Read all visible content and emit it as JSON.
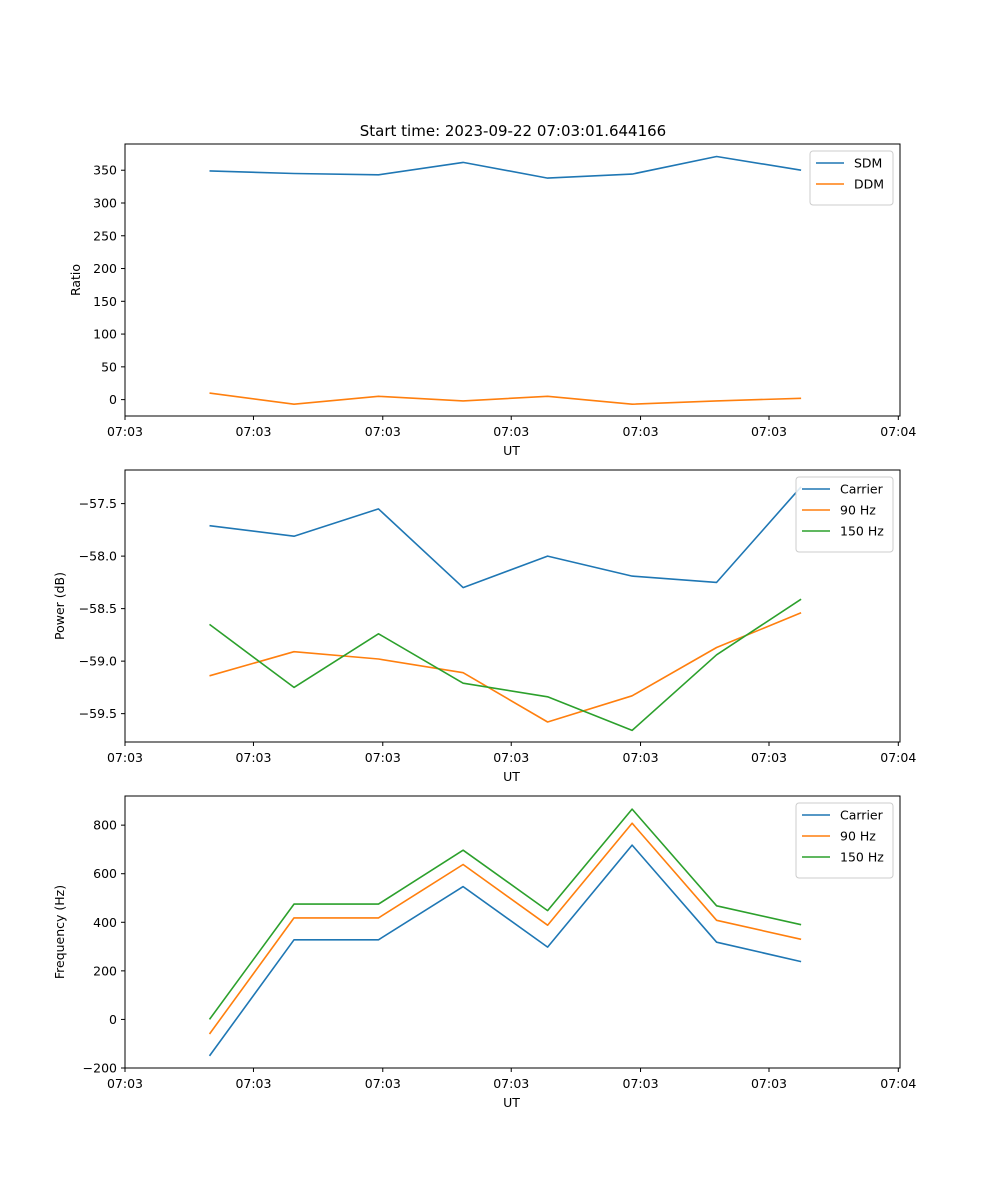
{
  "figure_title": "Start time: 2023-09-22 07:03:01.644166",
  "chart_data": [
    {
      "type": "line",
      "xlabel": "UT",
      "ylabel": "Ratio",
      "ylim": [
        -25,
        390
      ],
      "yticks": [
        0,
        50,
        100,
        150,
        200,
        250,
        300,
        350
      ],
      "ytick_labels": [
        "0",
        "50",
        "100",
        "150",
        "200",
        "250",
        "300",
        "350"
      ],
      "x": [
        1,
        2,
        3,
        4,
        5,
        6,
        7,
        8
      ],
      "xlim": [
        0,
        9.17
      ],
      "xticks": [
        0,
        1.52,
        3.05,
        4.57,
        6.1,
        7.62,
        9.15
      ],
      "xtick_labels": [
        "07:03",
        "07:03",
        "07:03",
        "07:03",
        "07:03",
        "07:03",
        "07:04"
      ],
      "legend_position": "top-right",
      "series": [
        {
          "name": "SDM",
          "color": "#1f77b4",
          "values": [
            349,
            345,
            343,
            362,
            338,
            344,
            371,
            350
          ]
        },
        {
          "name": "DDM",
          "color": "#ff7f0e",
          "values": [
            10,
            -7,
            5,
            -2,
            5,
            -7,
            -2,
            2
          ]
        }
      ]
    },
    {
      "type": "line",
      "xlabel": "UT",
      "ylabel": "Power (dB)",
      "ylim": [
        -59.77,
        -57.18
      ],
      "yticks": [
        -59.5,
        -59.0,
        -58.5,
        -58.0,
        -57.5
      ],
      "ytick_labels": [
        "−59.5",
        "−59.0",
        "−58.5",
        "−58.0",
        "−57.5"
      ],
      "x": [
        1,
        2,
        3,
        4,
        5,
        6,
        7,
        8
      ],
      "xlim": [
        0,
        9.17
      ],
      "xticks": [
        0,
        1.52,
        3.05,
        4.57,
        6.1,
        7.62,
        9.15
      ],
      "xtick_labels": [
        "07:03",
        "07:03",
        "07:03",
        "07:03",
        "07:03",
        "07:03",
        "07:04"
      ],
      "legend_position": "top-right",
      "series": [
        {
          "name": "Carrier",
          "color": "#1f77b4",
          "values": [
            -57.71,
            -57.81,
            -57.55,
            -58.3,
            -58.0,
            -58.19,
            -58.25,
            -57.34
          ]
        },
        {
          "name": "90 Hz",
          "color": "#ff7f0e",
          "values": [
            -59.14,
            -58.91,
            -58.98,
            -59.11,
            -59.58,
            -59.33,
            -58.87,
            -58.54
          ]
        },
        {
          "name": "150 Hz",
          "color": "#2ca02c",
          "values": [
            -58.65,
            -59.25,
            -58.74,
            -59.21,
            -59.34,
            -59.66,
            -58.94,
            -58.41
          ]
        }
      ]
    },
    {
      "type": "line",
      "xlabel": "UT",
      "ylabel": "Frequency (Hz)",
      "ylim": [
        -200,
        920
      ],
      "yticks": [
        -200,
        0,
        200,
        400,
        600,
        800
      ],
      "ytick_labels": [
        "−200",
        "0",
        "200",
        "400",
        "600",
        "800"
      ],
      "x": [
        1,
        2,
        3,
        4,
        5,
        6,
        7,
        8
      ],
      "xlim": [
        0,
        9.17
      ],
      "xticks": [
        0,
        1.52,
        3.05,
        4.57,
        6.1,
        7.62,
        9.15
      ],
      "xtick_labels": [
        "07:03",
        "07:03",
        "07:03",
        "07:03",
        "07:03",
        "07:03",
        "07:04"
      ],
      "legend_position": "top-right",
      "series": [
        {
          "name": "Carrier",
          "color": "#1f77b4",
          "values": [
            -150,
            328,
            328,
            547,
            298,
            718,
            318,
            238
          ]
        },
        {
          "name": "90 Hz",
          "color": "#ff7f0e",
          "values": [
            -60,
            418,
            418,
            638,
            388,
            808,
            408,
            330
          ]
        },
        {
          "name": "150 Hz",
          "color": "#2ca02c",
          "values": [
            0,
            475,
            475,
            697,
            448,
            866,
            468,
            390
          ]
        }
      ]
    }
  ]
}
